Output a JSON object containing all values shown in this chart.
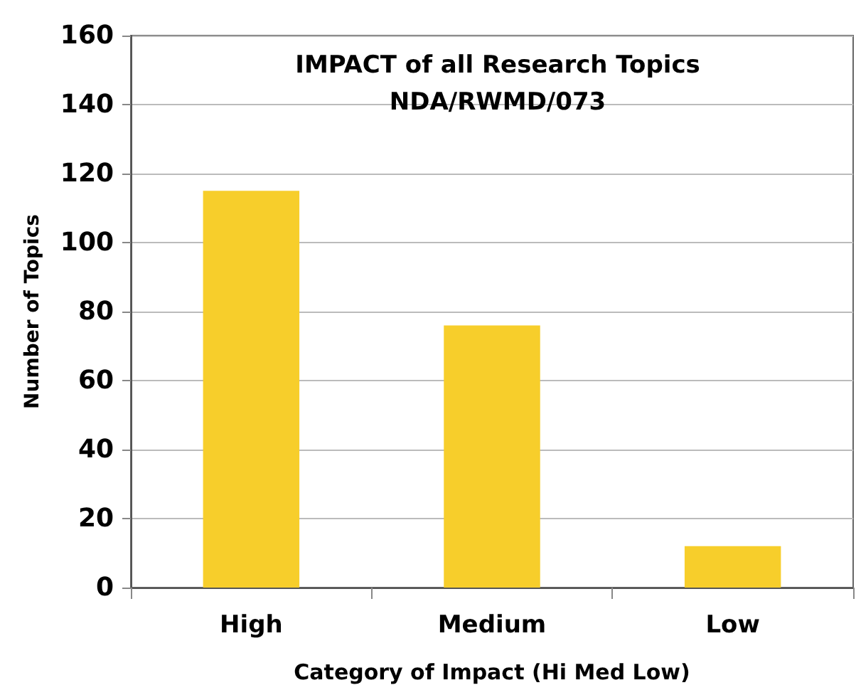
{
  "chart_data": {
    "type": "bar",
    "title": "IMPACT of all Research Topics\nNDA/RWMD/073",
    "xlabel": "Category of Impact (Hi Med Low)",
    "ylabel": "Number of Topics",
    "categories": [
      "High",
      "Medium",
      "Low"
    ],
    "values": [
      115,
      76,
      12
    ],
    "color": "#f7ce2b",
    "ylim": [
      0,
      160
    ],
    "yticks": [
      0,
      20,
      40,
      60,
      80,
      100,
      120,
      140,
      160
    ],
    "grid": "y"
  }
}
